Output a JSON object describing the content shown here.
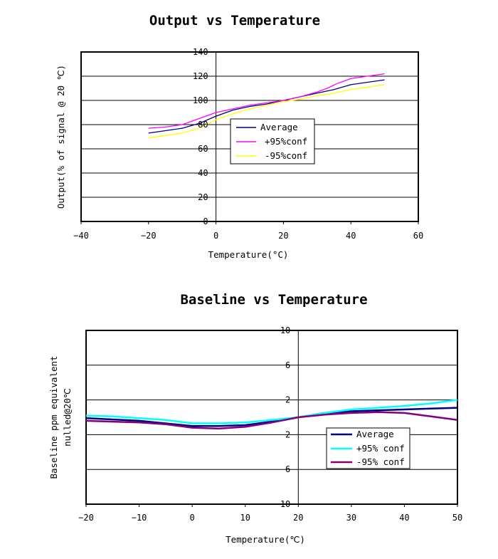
{
  "chart_data": [
    {
      "type": "line",
      "title": "Output vs Temperature",
      "xlabel": "Temperature(°C)",
      "ylabel": "Output(% of signal @ 20 ℃)",
      "xlim": [
        -40,
        60
      ],
      "ylim": [
        0,
        140
      ],
      "xticks": [
        "-40",
        "-20",
        "0",
        "20",
        "40",
        "60"
      ],
      "yticks": [
        "0",
        "20",
        "40",
        "60",
        "80",
        "100",
        "120",
        "140"
      ],
      "legend": "center",
      "series": [
        {
          "name": "Average",
          "color": "#000080",
          "x": [
            -20,
            -15,
            -10,
            -5,
            0,
            5,
            10,
            15,
            20,
            25,
            30,
            35,
            40,
            45,
            50
          ],
          "y": [
            73,
            75,
            77,
            81,
            87,
            92,
            95,
            97,
            100,
            103,
            106,
            109,
            113,
            115,
            117
          ]
        },
        {
          "name": "+95%conf",
          "color": "#ff00ff",
          "x": [
            -20,
            -15,
            -10,
            -5,
            0,
            5,
            10,
            15,
            20,
            25,
            30,
            33,
            36,
            40,
            45,
            50
          ],
          "y": [
            77,
            78,
            80,
            85,
            90,
            93,
            96,
            98,
            100,
            103,
            107,
            110,
            114,
            118,
            120,
            122
          ]
        },
        {
          "name": "-95%conf",
          "color": "#ffff00",
          "x": [
            -20,
            -15,
            -10,
            -5,
            0,
            5,
            10,
            15,
            20,
            25,
            30,
            35,
            40,
            45,
            50
          ],
          "y": [
            69,
            71,
            73,
            77,
            84,
            89,
            93,
            96,
            99,
            101,
            104,
            106,
            109,
            111,
            113
          ]
        }
      ]
    },
    {
      "type": "line",
      "title": "Baseline vs Temperature",
      "xlabel": "Temperature(℃)",
      "ylabel_line1": "Baseline ppm equivalent",
      "ylabel_line2": "nulled@20℃",
      "xlim": [
        -20,
        50
      ],
      "ylim": [
        -10,
        10
      ],
      "xticks": [
        "-20",
        "-10",
        "0",
        "10",
        "20",
        "30",
        "40",
        "50"
      ],
      "yticks": [
        "10",
        "6",
        "2",
        "2",
        "6",
        "10"
      ],
      "legend": "bottom-right",
      "series": [
        {
          "name": "Average",
          "color": "#000080",
          "x": [
            -20,
            -10,
            0,
            5,
            10,
            15,
            20,
            25,
            30,
            35,
            40,
            45,
            50
          ],
          "y": [
            -0.1,
            -0.4,
            -1.0,
            -1.0,
            -0.9,
            -0.5,
            0,
            0.5,
            0.7,
            0.8,
            0.9,
            1.0,
            1.1
          ]
        },
        {
          "name": "+95% conf",
          "color": "#00ffff",
          "x": [
            -20,
            -15,
            -10,
            -5,
            0,
            5,
            10,
            15,
            20,
            25,
            30,
            35,
            40,
            45,
            50
          ],
          "y": [
            0.2,
            0.1,
            -0.1,
            -0.3,
            -0.7,
            -0.7,
            -0.6,
            -0.3,
            0,
            0.5,
            0.9,
            1.1,
            1.3,
            1.6,
            2.0
          ]
        },
        {
          "name": "-95% conf",
          "color": "#800080",
          "x": [
            -20,
            -15,
            -10,
            -5,
            0,
            5,
            10,
            15,
            20,
            25,
            30,
            35,
            40,
            45,
            50
          ],
          "y": [
            -0.4,
            -0.5,
            -0.6,
            -0.8,
            -1.2,
            -1.3,
            -1.1,
            -0.6,
            0,
            0.3,
            0.5,
            0.6,
            0.5,
            0.1,
            -0.3
          ]
        }
      ]
    }
  ]
}
